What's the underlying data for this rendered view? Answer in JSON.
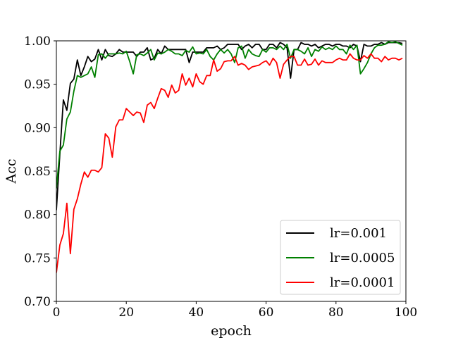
{
  "chart_data": {
    "type": "line",
    "title": "",
    "xlabel": "epoch",
    "ylabel": "Acc",
    "xlim": [
      0,
      100
    ],
    "ylim": [
      0.7,
      1.0
    ],
    "xticks": [
      0,
      20,
      40,
      60,
      80,
      100
    ],
    "xtick_labels": [
      "0",
      "20",
      "40",
      "60",
      "80",
      "100"
    ],
    "yticks": [
      0.7,
      0.75,
      0.8,
      0.85,
      0.9,
      0.95,
      1.0
    ],
    "ytick_labels": [
      "0.70",
      "0.75",
      "0.80",
      "0.85",
      "0.90",
      "0.95",
      "1.00"
    ],
    "grid": false,
    "legend_position": "lower-right",
    "series": [
      {
        "name": "lr=0.001",
        "color": "#000000",
        "x": [
          0,
          1,
          2,
          3,
          4,
          5,
          6,
          7,
          8,
          9,
          10,
          11,
          12,
          13,
          14,
          15,
          16,
          17,
          18,
          19,
          20,
          21,
          22,
          23,
          24,
          25,
          26,
          27,
          28,
          29,
          30,
          31,
          32,
          33,
          34,
          35,
          36,
          37,
          38,
          39,
          40,
          41,
          42,
          43,
          44,
          45,
          46,
          47,
          48,
          49,
          50,
          51,
          52,
          53,
          54,
          55,
          56,
          57,
          58,
          59,
          60,
          61,
          62,
          63,
          64,
          65,
          66,
          67,
          68,
          69,
          70,
          71,
          72,
          73,
          74,
          75,
          76,
          77,
          78,
          79,
          80,
          81,
          82,
          83,
          84,
          85,
          86,
          87,
          88,
          89,
          90,
          91,
          92,
          93,
          94,
          95,
          96,
          97,
          98,
          99
        ],
        "y": [
          0.805,
          0.87,
          0.932,
          0.92,
          0.951,
          0.956,
          0.978,
          0.96,
          0.97,
          0.982,
          0.976,
          0.979,
          0.99,
          0.978,
          0.99,
          0.983,
          0.982,
          0.985,
          0.99,
          0.987,
          0.987,
          0.987,
          0.987,
          0.982,
          0.987,
          0.987,
          0.992,
          0.978,
          0.98,
          0.99,
          0.985,
          0.994,
          0.99,
          0.99,
          0.99,
          0.99,
          0.99,
          0.99,
          0.975,
          0.987,
          0.987,
          0.987,
          0.987,
          0.992,
          0.992,
          0.992,
          0.994,
          0.99,
          0.992,
          0.996,
          0.996,
          0.996,
          0.996,
          0.99,
          0.994,
          0.996,
          0.992,
          0.996,
          0.996,
          0.99,
          0.99,
          0.996,
          0.996,
          0.992,
          0.998,
          0.996,
          0.992,
          0.957,
          0.99,
          0.99,
          0.998,
          0.996,
          0.996,
          0.994,
          0.996,
          0.992,
          0.994,
          0.996,
          0.996,
          0.994,
          0.996,
          0.996,
          0.994,
          0.994,
          0.992,
          0.996,
          0.994,
          0.976,
          0.996,
          0.994,
          0.994,
          0.996,
          0.996,
          0.998,
          0.996,
          0.998,
          0.998,
          0.998,
          0.998,
          0.997
        ]
      },
      {
        "name": "lr=0.0005",
        "color": "#008000",
        "x": [
          0,
          1,
          2,
          3,
          4,
          5,
          6,
          7,
          8,
          9,
          10,
          11,
          12,
          13,
          14,
          15,
          16,
          17,
          18,
          19,
          20,
          21,
          22,
          23,
          24,
          25,
          26,
          27,
          28,
          29,
          30,
          31,
          32,
          33,
          34,
          35,
          36,
          37,
          38,
          39,
          40,
          41,
          42,
          43,
          44,
          45,
          46,
          47,
          48,
          49,
          50,
          51,
          52,
          53,
          54,
          55,
          56,
          57,
          58,
          59,
          60,
          61,
          62,
          63,
          64,
          65,
          66,
          67,
          68,
          69,
          70,
          71,
          72,
          73,
          74,
          75,
          76,
          77,
          78,
          79,
          80,
          81,
          82,
          83,
          84,
          85,
          86,
          87,
          88,
          89,
          90,
          91,
          92,
          93,
          94,
          95,
          96,
          97,
          98,
          99
        ],
        "y": [
          0.83,
          0.873,
          0.88,
          0.91,
          0.918,
          0.942,
          0.96,
          0.958,
          0.96,
          0.962,
          0.97,
          0.958,
          0.984,
          0.985,
          0.98,
          0.985,
          0.985,
          0.985,
          0.986,
          0.985,
          0.988,
          0.976,
          0.962,
          0.984,
          0.985,
          0.983,
          0.986,
          0.99,
          0.978,
          0.986,
          0.985,
          0.987,
          0.99,
          0.988,
          0.985,
          0.985,
          0.983,
          0.989,
          0.987,
          0.993,
          0.985,
          0.986,
          0.985,
          0.99,
          0.982,
          0.978,
          0.985,
          0.99,
          0.986,
          0.99,
          0.985,
          0.975,
          0.992,
          0.994,
          0.98,
          0.99,
          0.985,
          0.983,
          0.982,
          0.99,
          0.987,
          0.992,
          0.992,
          0.99,
          0.994,
          0.99,
          0.996,
          0.98,
          0.99,
          0.99,
          0.988,
          0.985,
          0.992,
          0.982,
          0.99,
          0.988,
          0.993,
          0.99,
          0.992,
          0.99,
          0.994,
          0.99,
          0.99,
          0.985,
          0.995,
          0.99,
          0.995,
          0.962,
          0.968,
          0.975,
          0.985,
          0.992,
          0.995,
          0.995,
          0.996,
          0.999,
          0.998,
          0.999,
          0.997,
          0.995
        ]
      },
      {
        "name": "lr=0.0001",
        "color": "#ff0000",
        "x": [
          0,
          1,
          2,
          3,
          4,
          5,
          6,
          7,
          8,
          9,
          10,
          11,
          12,
          13,
          14,
          15,
          16,
          17,
          18,
          19,
          20,
          21,
          22,
          23,
          24,
          25,
          26,
          27,
          28,
          29,
          30,
          31,
          32,
          33,
          34,
          35,
          36,
          37,
          38,
          39,
          40,
          41,
          42,
          43,
          44,
          45,
          46,
          47,
          48,
          49,
          50,
          51,
          52,
          53,
          54,
          55,
          56,
          57,
          58,
          59,
          60,
          61,
          62,
          63,
          64,
          65,
          66,
          67,
          68,
          69,
          70,
          71,
          72,
          73,
          74,
          75,
          76,
          77,
          78,
          79,
          80,
          81,
          82,
          83,
          84,
          85,
          86,
          87,
          88,
          89,
          90,
          91,
          92,
          93,
          94,
          95,
          96,
          97,
          98,
          99
        ],
        "y": [
          0.733,
          0.765,
          0.778,
          0.813,
          0.755,
          0.806,
          0.818,
          0.835,
          0.849,
          0.843,
          0.851,
          0.851,
          0.849,
          0.854,
          0.893,
          0.888,
          0.866,
          0.901,
          0.909,
          0.909,
          0.922,
          0.918,
          0.914,
          0.918,
          0.917,
          0.906,
          0.926,
          0.929,
          0.922,
          0.934,
          0.945,
          0.943,
          0.935,
          0.949,
          0.94,
          0.943,
          0.962,
          0.949,
          0.957,
          0.947,
          0.962,
          0.953,
          0.95,
          0.96,
          0.96,
          0.978,
          0.965,
          0.968,
          0.976,
          0.977,
          0.977,
          0.982,
          0.972,
          0.974,
          0.972,
          0.967,
          0.97,
          0.971,
          0.972,
          0.975,
          0.977,
          0.972,
          0.98,
          0.975,
          0.957,
          0.973,
          0.978,
          0.982,
          0.982,
          0.972,
          0.972,
          0.979,
          0.972,
          0.973,
          0.979,
          0.972,
          0.977,
          0.975,
          0.975,
          0.975,
          0.978,
          0.98,
          0.978,
          0.978,
          0.985,
          0.98,
          0.978,
          0.978,
          0.983,
          0.98,
          0.985,
          0.98,
          0.98,
          0.976,
          0.982,
          0.978,
          0.98,
          0.98,
          0.978,
          0.98
        ]
      }
    ]
  }
}
